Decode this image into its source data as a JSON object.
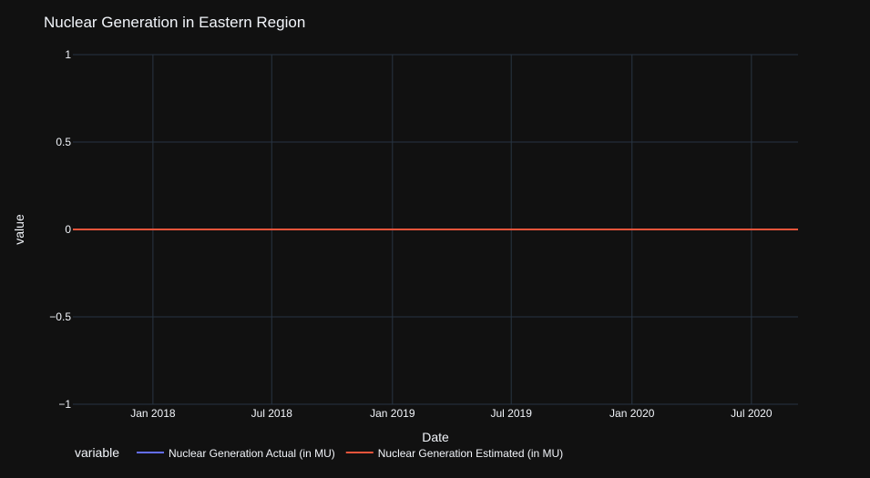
{
  "chart_data": {
    "type": "line",
    "title": "Nuclear Generation in Eastern Region",
    "xlabel": "Date",
    "ylabel": "value",
    "xlim": [
      "2017-09-01",
      "2020-09-10"
    ],
    "ylim": [
      -1,
      1
    ],
    "x_ticks": [
      {
        "date": "2018-01-01",
        "label": "Jan 2018"
      },
      {
        "date": "2018-07-01",
        "label": "Jul 2018"
      },
      {
        "date": "2019-01-01",
        "label": "Jan 2019"
      },
      {
        "date": "2019-07-01",
        "label": "Jul 2019"
      },
      {
        "date": "2020-01-01",
        "label": "Jan 2020"
      },
      {
        "date": "2020-07-01",
        "label": "Jul 2020"
      }
    ],
    "y_ticks": [
      {
        "value": 1,
        "label": "1"
      },
      {
        "value": 0.5,
        "label": "0.5"
      },
      {
        "value": 0,
        "label": "0"
      },
      {
        "value": -0.5,
        "label": "−0.5"
      },
      {
        "value": -1,
        "label": "−1"
      }
    ],
    "grid": true,
    "legend": {
      "title": "variable",
      "placement": "bottom"
    },
    "x": [
      "2017-09-01",
      "2020-09-10"
    ],
    "series": [
      {
        "name": "Nuclear Generation Actual (in MU)",
        "color": "#636efa",
        "values": [
          0,
          0
        ]
      },
      {
        "name": "Nuclear Generation Estimated (in MU)",
        "color": "#ef553b",
        "values": [
          0,
          0
        ]
      }
    ]
  }
}
